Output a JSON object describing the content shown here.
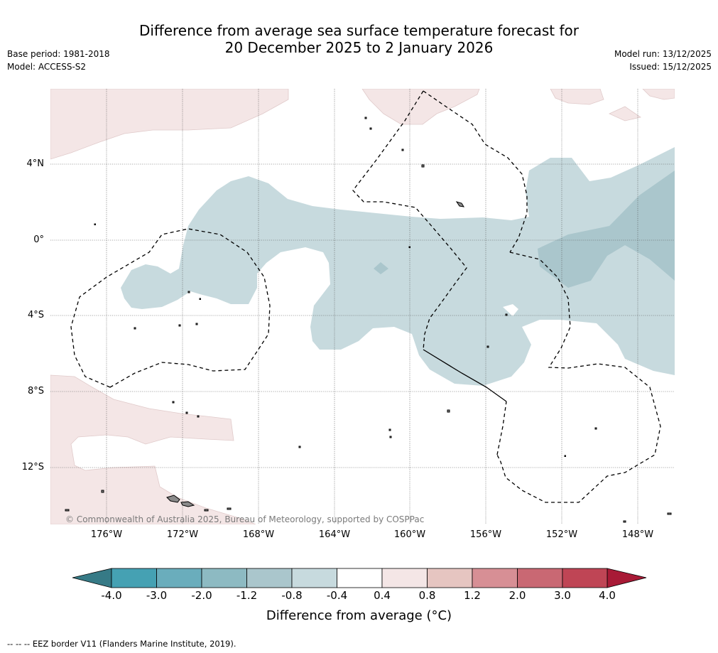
{
  "title": {
    "line1": "Difference from average sea surface temperature forecast for",
    "line2": "20 December 2025 to 2 January 2026"
  },
  "meta": {
    "base_period": "Base period: 1981-2018",
    "model": "Model: ACCESS-S2",
    "model_run": "Model run: 13/12/2025",
    "issued": "Issued: 15/12/2025"
  },
  "map": {
    "lat_labels": [
      "4°N",
      "0°",
      "4°S",
      "8°S",
      "12°S"
    ],
    "lon_labels": [
      "176°W",
      "172°W",
      "168°W",
      "164°W",
      "160°W",
      "156°W",
      "152°W",
      "148°W"
    ],
    "credit": "© Commonwealth of Australia 2025, Bureau of Meteorology, supported by COSPPac"
  },
  "colorbar": {
    "ticks": [
      "-4.0",
      "-3.0",
      "-2.0",
      "-1.2",
      "-0.8",
      "-0.4",
      "0.4",
      "0.8",
      "1.2",
      "2.0",
      "3.0",
      "4.0"
    ],
    "colors": [
      "#45a1b3",
      "#6aadbc",
      "#8dbac2",
      "#aac6cc",
      "#c7dade",
      "#ffffff",
      "#f4e6e6",
      "#e6c5c1",
      "#d78f95",
      "#c96873",
      "#bf4555"
    ],
    "under_color": "#367a86",
    "over_color": "#a81a36",
    "title": "Difference from average (°C)"
  },
  "colors": {
    "cool_light": "#c7dade",
    "cool_mid": "#aac6cc",
    "warm_light": "#f4e6e6"
  },
  "footer": {
    "eez_note": "--  --  -- EEZ border V11 (Flanders Marine Institute, 2019)."
  }
}
